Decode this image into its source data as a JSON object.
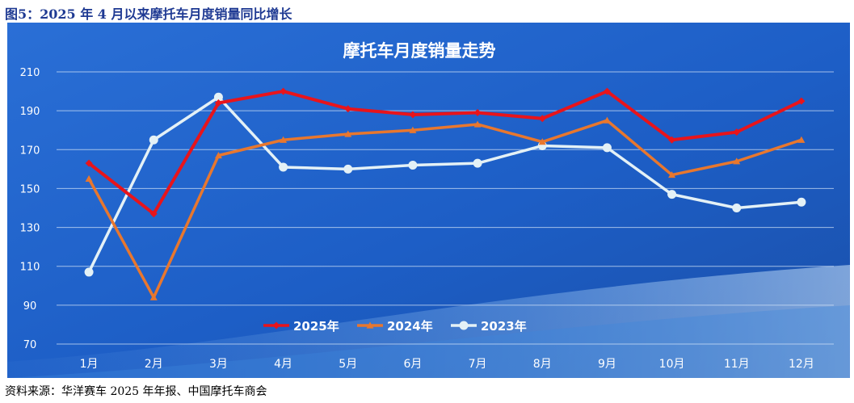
{
  "figure": {
    "caption": "图5：2025 年 4 月以来摩托车月度销量同比增长",
    "source": "资料来源：华洋赛车 2025 年年报、中国摩托车商会"
  },
  "chart_data": {
    "type": "line",
    "title": "摩托车月度销量走势",
    "xlabel": "",
    "ylabel": "",
    "categories": [
      "1月",
      "2月",
      "3月",
      "4月",
      "5月",
      "6月",
      "7月",
      "8月",
      "9月",
      "10月",
      "11月",
      "12月"
    ],
    "ylim": [
      70,
      210
    ],
    "yticks": [
      70,
      90,
      110,
      130,
      150,
      170,
      190,
      210
    ],
    "grid": true,
    "legend_position": "bottom",
    "background_color": "#1f63c8",
    "series": [
      {
        "name": "2025年",
        "color": "#e8141b",
        "marker": "diamond",
        "values": [
          163,
          137,
          194,
          200,
          191,
          188,
          189,
          186,
          200,
          175,
          179,
          195
        ]
      },
      {
        "name": "2024年",
        "color": "#e8772e",
        "marker": "triangle",
        "values": [
          155,
          94,
          167,
          175,
          178,
          180,
          183,
          174,
          185,
          157,
          164,
          175
        ]
      },
      {
        "name": "2023年",
        "color": "#e4f1f6",
        "marker": "circle",
        "values": [
          107,
          175,
          197,
          161,
          160,
          162,
          163,
          172,
          171,
          147,
          140,
          143
        ]
      }
    ]
  }
}
